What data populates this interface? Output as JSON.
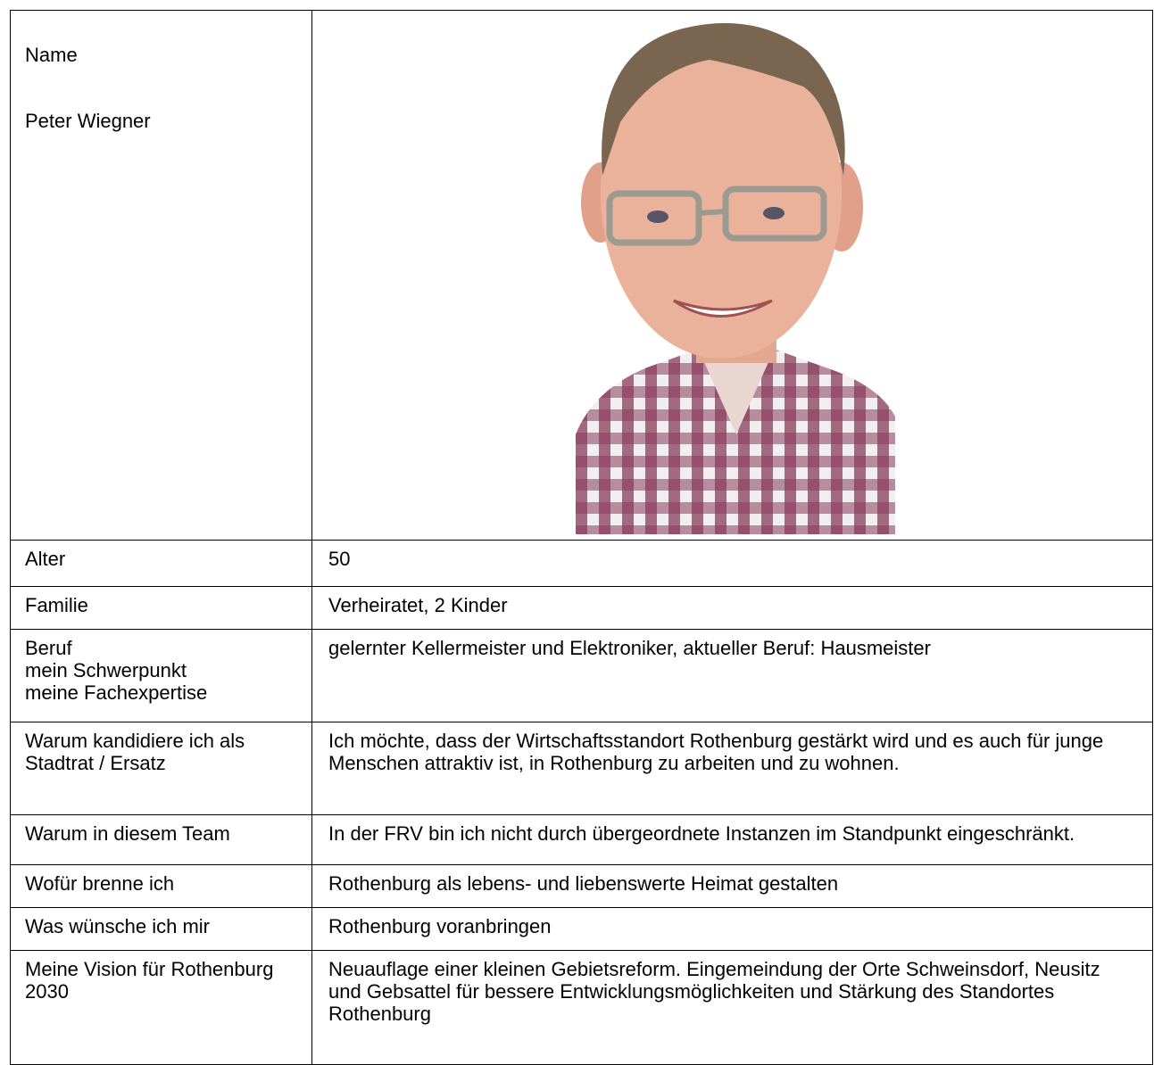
{
  "profile": {
    "name_label": "Name",
    "name": "Peter Wiegner"
  },
  "table": {
    "rows": [
      [
        "Alter",
        "50"
      ],
      [
        "Familie",
        "Verheiratet, 2 Kinder"
      ],
      [
        "Beruf\nmein Schwerpunkt\nmeine Fachexpertise",
        "gelernter Kellermeister und Elektroniker, aktueller Beruf: Hausmeister"
      ],
      [
        "Warum kandidiere ich als Stadtrat / Ersatz",
        "Ich möchte, dass der Wirtschaftsstandort Rothenburg gestärkt wird und es auch für junge Menschen attraktiv ist, in Rothenburg zu arbeiten und zu wohnen."
      ],
      [
        "Warum in diesem Team",
        "In der FRV bin ich nicht durch übergeordnete Instanzen im Standpunkt eingeschränkt."
      ],
      [
        "Wofür brenne ich",
        "Rothenburg als lebens- und liebenswerte Heimat gestalten"
      ],
      [
        "Was wünsche ich mir",
        "Rothenburg voranbringen"
      ],
      [
        "Meine Vision für Rothenburg 2030",
        "Neuauflage einer kleinen Gebietsreform. Eingemeindung der Orte Schweinsdorf, Neusitz und Gebsattel für bessere Entwicklungsmöglichkeiten und Stärkung des Standortes Rothenburg"
      ]
    ]
  }
}
